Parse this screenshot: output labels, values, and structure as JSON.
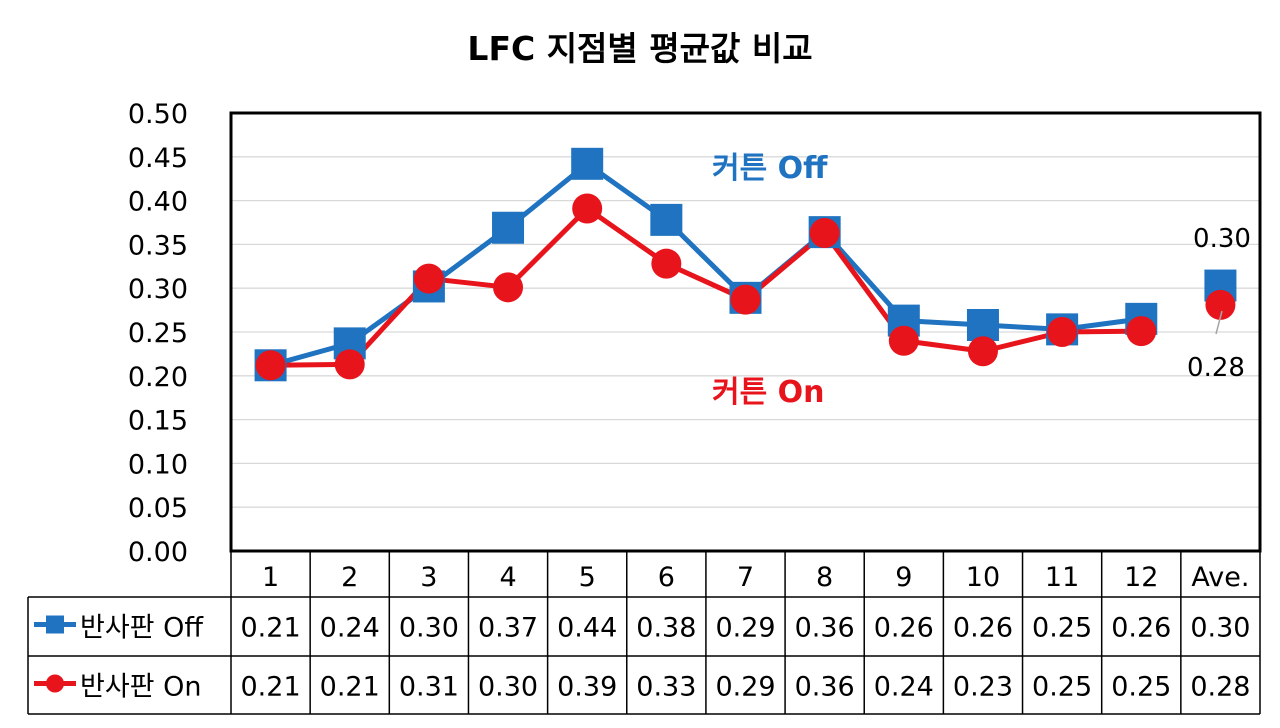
{
  "chart_data": {
    "type": "line",
    "title": "LFC 지점별 평균값 비교",
    "categories": [
      "1",
      "2",
      "3",
      "4",
      "5",
      "6",
      "7",
      "8",
      "9",
      "10",
      "11",
      "12",
      "Ave."
    ],
    "ylim": [
      0,
      0.5
    ],
    "yticks": [
      "0.00",
      "0.05",
      "0.10",
      "0.15",
      "0.20",
      "0.25",
      "0.30",
      "0.35",
      "0.40",
      "0.45",
      "0.50"
    ],
    "grid": true,
    "legend": "data-table",
    "series": [
      {
        "name": "반사판 Off",
        "color": "#1f73c0",
        "marker": "square",
        "values": [
          0.212,
          0.237,
          0.302,
          0.369,
          0.442,
          0.378,
          0.289,
          0.364,
          0.263,
          0.258,
          0.253,
          0.265,
          0.303
        ],
        "table_values": [
          "0.21",
          "0.24",
          "0.30",
          "0.37",
          "0.44",
          "0.38",
          "0.29",
          "0.36",
          "0.26",
          "0.26",
          "0.25",
          "0.26",
          "0.30"
        ]
      },
      {
        "name": "반사판 On",
        "color": "#e8141c",
        "marker": "circle",
        "values": [
          0.212,
          0.213,
          0.311,
          0.301,
          0.391,
          0.328,
          0.287,
          0.363,
          0.24,
          0.228,
          0.25,
          0.251,
          0.281
        ],
        "table_values": [
          "0.21",
          "0.21",
          "0.31",
          "0.30",
          "0.39",
          "0.33",
          "0.29",
          "0.36",
          "0.24",
          "0.23",
          "0.25",
          "0.25",
          "0.28"
        ]
      }
    ],
    "annotations": [
      {
        "text": "커튼 Off",
        "color": "#1f73c0"
      },
      {
        "text": "커튼 On",
        "color": "#e8141c"
      }
    ],
    "data_labels": [
      {
        "series": 0,
        "index": 12,
        "text": "0.30"
      },
      {
        "series": 1,
        "index": 12,
        "text": "0.28"
      }
    ]
  }
}
